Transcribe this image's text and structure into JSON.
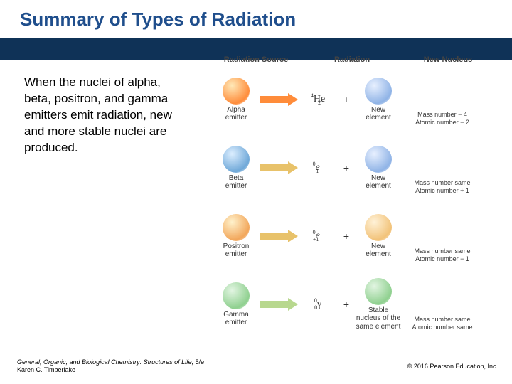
{
  "title": {
    "text": "Summary of Types of Radiation",
    "color": "#1f4e8c"
  },
  "band_color": "#0f3257",
  "body_text": "When the nuclei of alpha, beta, positron, and gamma emitters emit radiation, new and more stable nuclei are produced.",
  "columns": {
    "source": "Radiation Source",
    "radiation": "Radiation",
    "nucleus": "New Nucleus"
  },
  "rows": [
    {
      "emitter_label": "Alpha\nemitter",
      "emitter_gradient": [
        "#ffe9b8",
        "#ff8c3a"
      ],
      "arrow_color": "#ff8c3a",
      "particle_html": "<span class='sup'>4</span><span style='position:relative'>He</span><span class='sub'>2</span>",
      "result_label": "New\nelement",
      "result_gradient": [
        "#e8f0ff",
        "#8fb3e6"
      ],
      "mass_note": "Mass number − 4\nAtomic number − 2"
    },
    {
      "emitter_label": "Beta\nemitter",
      "emitter_gradient": [
        "#dceeff",
        "#6fa8d8"
      ],
      "arrow_color": "#e8c26a",
      "particle_html": "<span class='sup'>0</span><span style='font-style:italic'>e</span><span class='sub'>−1</span>",
      "result_label": "New\nelement",
      "result_gradient": [
        "#e8f0ff",
        "#8fb3e6"
      ],
      "mass_note": "Mass number same\nAtomic number + 1"
    },
    {
      "emitter_label": "Positron\nemitter",
      "emitter_gradient": [
        "#fff2cc",
        "#f2a65a"
      ],
      "arrow_color": "#e8c26a",
      "particle_html": "<span class='sup'>0</span><span style='font-style:italic'>e</span><span class='sub'>+1</span>",
      "result_label": "New\nelement",
      "result_gradient": [
        "#fff2d8",
        "#f2c278"
      ],
      "mass_note": "Mass number same\nAtomic number − 1"
    },
    {
      "emitter_label": "Gamma\nemitter",
      "emitter_gradient": [
        "#e2f5e2",
        "#8fd08f"
      ],
      "arrow_color": "#b8d88f",
      "particle_html": "<span class='sup'>0</span>γ<span class='sub'>0</span>",
      "result_label": "Stable\nnucleus of the\nsame element",
      "result_gradient": [
        "#e2f5e2",
        "#8fd08f"
      ],
      "mass_note": "Mass number same\nAtomic number same"
    }
  ],
  "footer": {
    "book": "General, Organic, and Biological Chemistry: Structures of Life,",
    "edition": "5/e",
    "author": "Karen C. Timberlake",
    "copyright": "© 2016 Pearson Education, Inc."
  }
}
